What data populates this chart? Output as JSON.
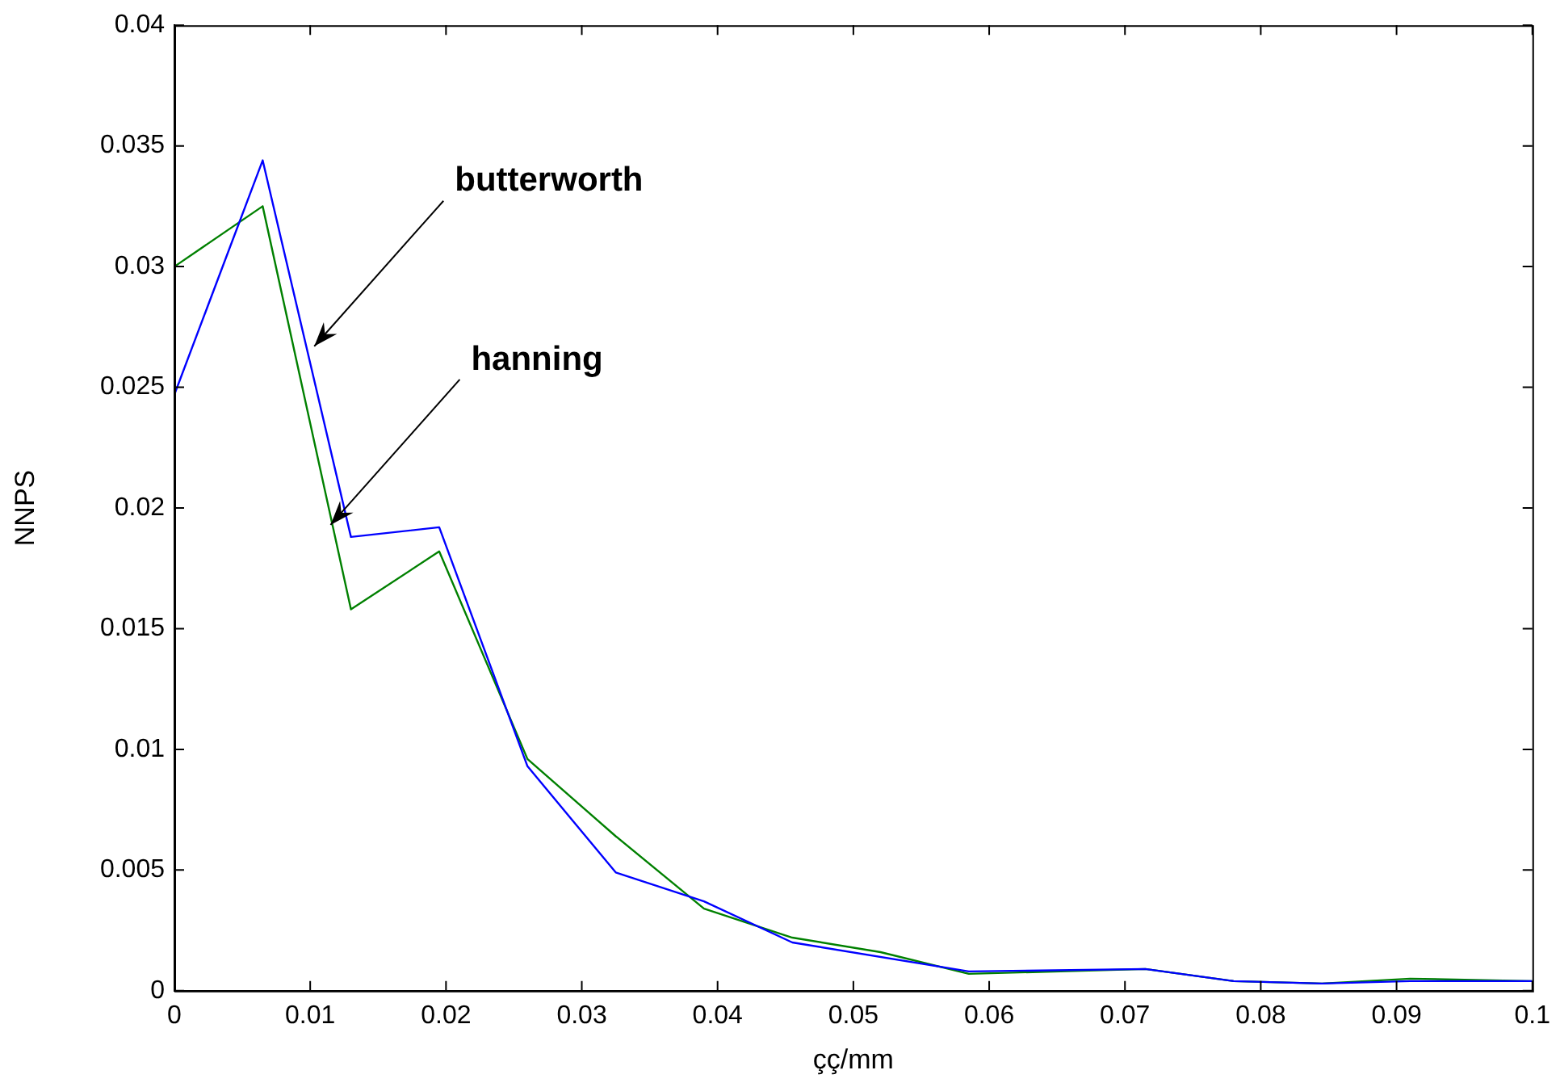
{
  "chart_data": {
    "type": "line",
    "xlabel": "çç/mm",
    "ylabel": "NNPS",
    "xlim": [
      0,
      0.1
    ],
    "xticks": [
      0,
      0.01,
      0.02,
      0.03,
      0.04,
      0.05,
      0.06,
      0.07,
      0.08,
      0.09,
      0.1
    ],
    "ylim": [
      0,
      0.04
    ],
    "yticks": [
      0,
      0.005,
      0.01,
      0.015,
      0.02,
      0.025,
      0.03,
      0.035,
      0.04
    ],
    "grid": false,
    "legend": false,
    "marker": "none",
    "line_style": "solid",
    "series": [
      {
        "color": "#0000ff",
        "x": [
          0,
          0.0065,
          0.013,
          0.0195,
          0.026,
          0.0325,
          0.039,
          0.0455,
          0.0585,
          0.0715,
          0.078,
          0.0845,
          0.091,
          0.1
        ],
        "values": [
          0.0247,
          0.0344,
          0.0188,
          0.0192,
          0.0093,
          0.0049,
          0.0037,
          0.002,
          0.0008,
          0.0009,
          0.0004,
          0.0003,
          0.0004,
          0.0004
        ]
      },
      {
        "color": "#008000",
        "x": [
          0,
          0.0065,
          0.013,
          0.0195,
          0.026,
          0.0325,
          0.039,
          0.0455,
          0.052,
          0.0585,
          0.0715,
          0.078,
          0.0845,
          0.091,
          0.1
        ],
        "values": [
          0.03,
          0.0325,
          0.0158,
          0.0182,
          0.0096,
          0.0064,
          0.0034,
          0.0022,
          0.0016,
          0.0007,
          0.0009,
          0.0004,
          0.0003,
          0.0005,
          0.0004
        ]
      }
    ],
    "annotations": [
      {
        "text": "butterworth",
        "x": 0.0103,
        "y": 0.0267
      },
      {
        "text": "hanning",
        "x": 0.0115,
        "y": 0.0193
      }
    ]
  }
}
